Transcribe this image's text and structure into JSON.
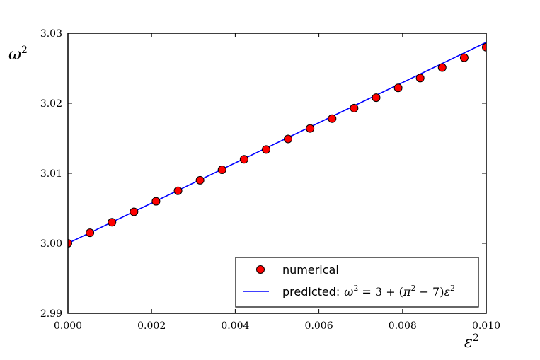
{
  "chart_data": {
    "type": "scatter",
    "xlabel": "ε²",
    "ylabel": "ω²",
    "xlim": [
      0.0,
      0.01
    ],
    "ylim": [
      2.99,
      3.03
    ],
    "x_ticks": [
      "0.000",
      "0.002",
      "0.004",
      "0.006",
      "0.008",
      "0.010"
    ],
    "y_ticks": [
      "2.99",
      "3.00",
      "3.01",
      "3.02",
      "3.03"
    ],
    "x_tick_values": [
      0.0,
      0.002,
      0.004,
      0.006,
      0.008,
      0.01
    ],
    "y_tick_values": [
      2.99,
      3.0,
      3.01,
      3.02,
      3.03
    ],
    "legend_position": "lower-right",
    "series": [
      {
        "name": "numerical",
        "kind": "scatter",
        "color": "#ff0000",
        "edge_color": "#000000",
        "x": [
          0.0,
          0.000526,
          0.001053,
          0.001579,
          0.002105,
          0.002632,
          0.003158,
          0.003684,
          0.004211,
          0.004737,
          0.005263,
          0.005789,
          0.006316,
          0.006842,
          0.007368,
          0.007895,
          0.008421,
          0.008947,
          0.009474,
          0.01
        ],
        "y": [
          3.0,
          3.0015,
          3.003,
          3.0045,
          3.006,
          3.0075,
          3.009,
          3.0105,
          3.012,
          3.0134,
          3.0149,
          3.0164,
          3.0178,
          3.0193,
          3.0208,
          3.0222,
          3.0236,
          3.0251,
          3.0265,
          3.028
        ]
      },
      {
        "name": "predicted: ω² = 3 + (π² − 7)ε²",
        "kind": "line",
        "color": "#0000ff",
        "x": [
          0.0,
          0.01
        ],
        "y": [
          3.0,
          3.0287
        ]
      }
    ]
  }
}
